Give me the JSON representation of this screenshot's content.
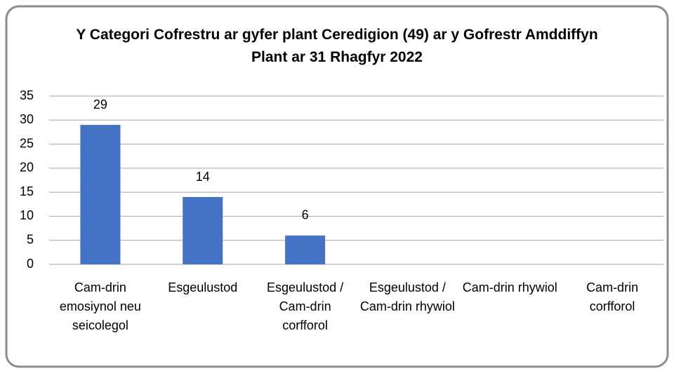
{
  "chart_data": {
    "type": "bar",
    "title": "Y Categori Cofrestru ar gyfer plant Ceredigion (49) ar y Gofrestr Amddiffyn Plant ar 31 Rhagfyr 2022",
    "categories": [
      "Cam-drin emosiynol neu seicolegol",
      "Esgeulustod",
      "Esgeulustod / Cam-drin corfforol",
      "Esgeulustod / Cam-drin rhywiol",
      "Cam-drin rhywiol",
      "Cam-drin corfforol"
    ],
    "values": [
      29,
      14,
      6,
      0,
      0,
      0
    ],
    "color": "#4472c4",
    "ylim": [
      0,
      35
    ],
    "yticks": [
      0,
      5,
      10,
      15,
      20,
      25,
      30,
      35
    ],
    "grid": true
  }
}
